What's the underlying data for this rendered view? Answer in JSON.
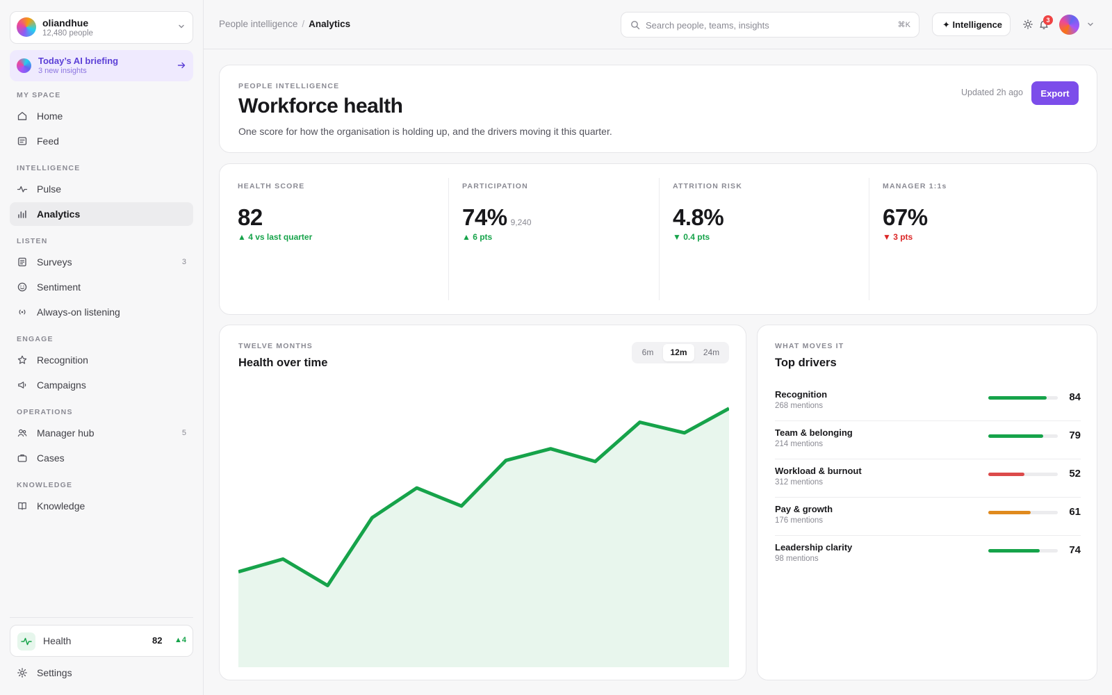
{
  "org": {
    "name": "oliandhue",
    "people": "12,480 people"
  },
  "briefing": {
    "title": "Today’s AI briefing",
    "subtitle": "3 new insights"
  },
  "sidebar": {
    "sections": [
      {
        "label": "MY SPACE",
        "items": [
          {
            "label": "Home",
            "icon": "home-icon"
          },
          {
            "label": "Feed",
            "icon": "feed-icon"
          }
        ]
      },
      {
        "label": "INTELLIGENCE",
        "items": [
          {
            "label": "Pulse",
            "icon": "pulse-icon"
          },
          {
            "label": "Analytics",
            "icon": "bar-chart-icon",
            "active": true
          }
        ]
      },
      {
        "label": "LISTEN",
        "items": [
          {
            "label": "Surveys",
            "icon": "survey-icon",
            "count": "3"
          },
          {
            "label": "Sentiment",
            "icon": "smile-icon"
          },
          {
            "label": "Always-on listening",
            "icon": "broadcast-icon"
          }
        ]
      },
      {
        "label": "ENGAGE",
        "items": [
          {
            "label": "Recognition",
            "icon": "star-icon"
          },
          {
            "label": "Campaigns",
            "icon": "megaphone-icon"
          }
        ]
      },
      {
        "label": "OPERATIONS",
        "items": [
          {
            "label": "Manager hub",
            "icon": "users-icon",
            "count": "5"
          },
          {
            "label": "Cases",
            "icon": "briefcase-icon"
          }
        ]
      },
      {
        "label": "KNOWLEDGE",
        "items": [
          {
            "label": "Knowledge",
            "icon": "book-icon"
          }
        ]
      }
    ],
    "health": {
      "label": "Health",
      "value": "82",
      "delta": "4"
    },
    "settings": "Settings"
  },
  "topbar": {
    "breadcrumb": [
      "People intelligence",
      "Analytics"
    ],
    "search": {
      "placeholder": "Search people, teams, insights",
      "value": "",
      "shortcut": "⌘K"
    },
    "intelligence_label": "✦ Intelligence",
    "notifications": "3"
  },
  "header": {
    "eyebrow": "PEOPLE INTELLIGENCE",
    "title": "Workforce health",
    "description": "One score for how the organisation is holding up, and the drivers moving it this quarter.",
    "updated": "Updated 2h ago",
    "export_label": "Export"
  },
  "kpis": [
    {
      "label": "HEALTH SCORE",
      "value": "82",
      "secondary": "",
      "delta": "4 vs last quarter",
      "direction": "up",
      "color": "#16a34a"
    },
    {
      "label": "PARTICIPATION",
      "value": "74%",
      "secondary": "9,240",
      "delta": "6 pts",
      "direction": "up",
      "color": "#16a34a"
    },
    {
      "label": "ATTRITION RISK",
      "value": "4.8%",
      "secondary": "",
      "delta": "0.4 pts",
      "direction": "down",
      "color": "#16a34a"
    },
    {
      "label": "MANAGER 1:1s",
      "value": "67%",
      "secondary": "",
      "delta": "3 pts",
      "direction": "down",
      "color": "#dc2626"
    }
  ],
  "chart": {
    "eyebrow": "TWELVE MONTHS",
    "title": "Health over time",
    "ranges": [
      "6m",
      "12m",
      "24m"
    ],
    "selected_range": "12m"
  },
  "chart_data": {
    "type": "area",
    "x": [
      1,
      2,
      3,
      4,
      5,
      6,
      7,
      8,
      9,
      10,
      11,
      12
    ],
    "series": [
      {
        "values": [
          68,
          69.2,
          66.7,
          73.1,
          75.9,
          74.2,
          78.5,
          79.6,
          78.4,
          82.1,
          81.1,
          83.4
        ],
        "color": "#16a34a"
      }
    ],
    "ylim": [
      59,
      86
    ],
    "title": "Health over time",
    "grid": false
  },
  "drivers": {
    "eyebrow": "WHAT MOVES IT",
    "title": "Top drivers",
    "items": [
      {
        "name": "Recognition",
        "mentions": "268 mentions",
        "score": 84,
        "color": "#16a34a"
      },
      {
        "name": "Team & belonging",
        "mentions": "214 mentions",
        "score": 79,
        "color": "#16a34a"
      },
      {
        "name": "Workload & burnout",
        "mentions": "312 mentions",
        "score": 52,
        "color": "#dc4a4a"
      },
      {
        "name": "Pay & growth",
        "mentions": "176 mentions",
        "score": 61,
        "color": "#e08a1e"
      },
      {
        "name": "Leadership clarity",
        "mentions": "98 mentions",
        "score": 74,
        "color": "#16a34a"
      }
    ]
  }
}
